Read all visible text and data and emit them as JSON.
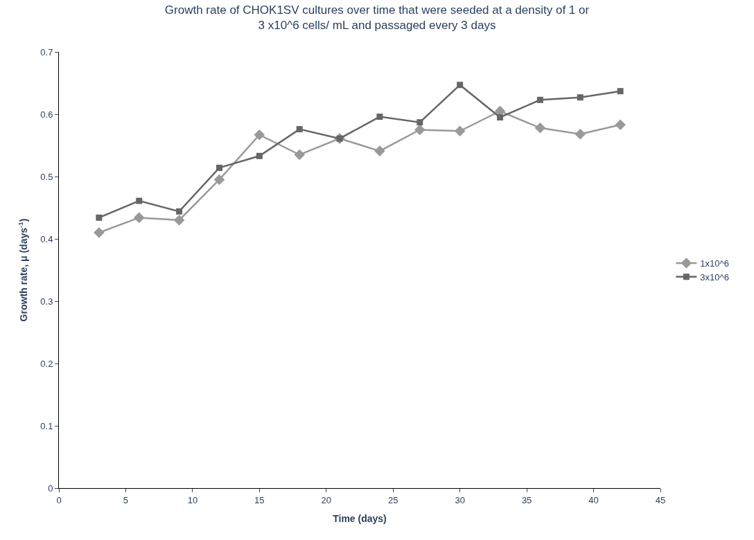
{
  "chart_data": {
    "type": "line",
    "title": "Growth rate of CHOK1SV cultures over time that were seeded at a density of 1 or 3 x10^6 cells/ mL and passaged every 3 days",
    "xlabel": "Time (days)",
    "ylabel": "Growth rate, μ (days$^{-1}$)",
    "x": [
      3,
      6,
      9,
      12,
      15,
      18,
      21,
      24,
      27,
      30,
      33,
      36,
      39,
      42
    ],
    "series": [
      {
        "name": "1x10^6",
        "color": "#999999",
        "marker": "diamond",
        "values": [
          0.41,
          0.434,
          0.43,
          0.495,
          0.567,
          0.535,
          0.561,
          0.541,
          0.575,
          0.573,
          0.605,
          0.578,
          0.568,
          0.583
        ]
      },
      {
        "name": "3x10^6",
        "color": "#666666",
        "marker": "square",
        "values": [
          0.434,
          0.461,
          0.444,
          0.514,
          0.533,
          0.576,
          0.561,
          0.596,
          0.587,
          0.647,
          0.595,
          0.623,
          0.627,
          0.637
        ]
      }
    ],
    "xlim": [
      0,
      45
    ],
    "xticks": [
      0,
      5,
      10,
      15,
      20,
      25,
      30,
      35,
      40,
      45
    ],
    "ylim": [
      0,
      0.7
    ],
    "yticks": [
      0,
      0.1,
      0.2,
      0.3,
      0.4,
      0.5,
      0.6,
      0.7
    ],
    "grid": false,
    "legend": "right",
    "line_style": "solid"
  }
}
